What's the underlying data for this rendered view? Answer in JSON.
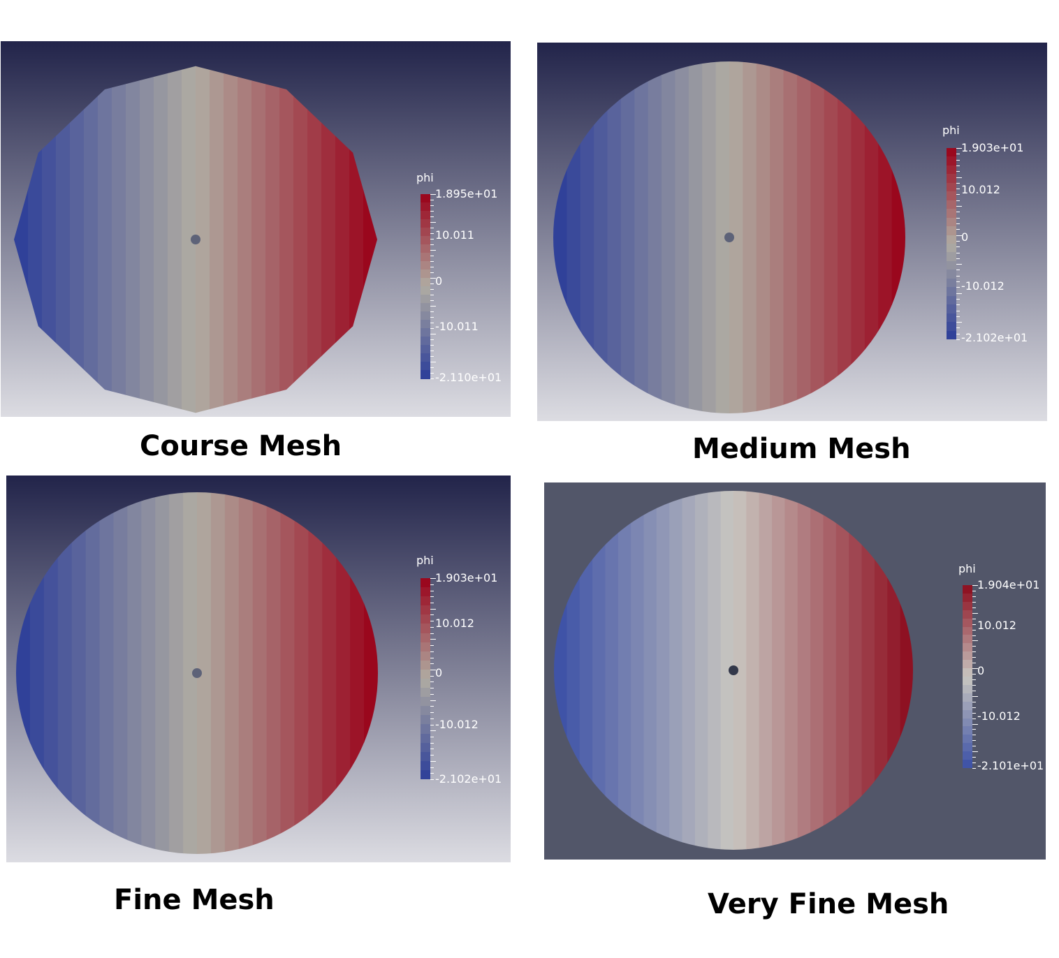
{
  "panels": [
    {
      "caption": "Course Mesh",
      "background": "gradient",
      "palette": "paraview",
      "legend": {
        "title": "phi",
        "max": "1.895e+01",
        "upper": "10.011",
        "mid": "0",
        "lower": "-10.011",
        "min": "-2.110e+01"
      }
    },
    {
      "caption": "Medium Mesh",
      "background": "gradient",
      "palette": "paraview",
      "legend": {
        "title": "phi",
        "max": "1.903e+01",
        "upper": "10.012",
        "mid": "0",
        "lower": "-10.012",
        "min": "-2.102e+01"
      }
    },
    {
      "caption": "Fine Mesh",
      "background": "gradient",
      "palette": "paraview",
      "legend": {
        "title": "phi",
        "max": "1.903e+01",
        "upper": "10.012",
        "mid": "0",
        "lower": "-10.012",
        "min": "-2.102e+01"
      }
    },
    {
      "caption": "Very Fine Mesh",
      "background": "flat",
      "palette": "coolwarm",
      "legend": {
        "title": "phi",
        "max": "1.904e+01",
        "upper": "10.012",
        "mid": "0",
        "lower": "-10.012",
        "min": "-2.101e+01"
      }
    }
  ],
  "colors": {
    "gradient_top": "#22244a",
    "gradient_bottom": "#dcdce2",
    "flat_background": "#525669",
    "paraview": [
      "#2b3d99",
      "#b0aca2",
      "#990018"
    ],
    "coolwarm": [
      "#3a4fa6",
      "#c8c6c0",
      "#8c0a1c"
    ]
  }
}
